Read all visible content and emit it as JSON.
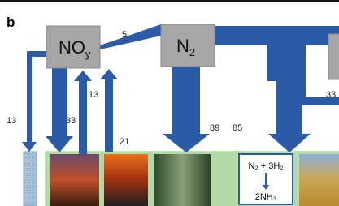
{
  "panel_label": "b",
  "nodes": [
    {
      "label": "NO",
      "subscript": "y"
    },
    {
      "label": "N",
      "subscript": "2"
    }
  ],
  "flows": [
    5,
    13,
    33,
    13,
    21,
    89,
    85,
    33
  ],
  "reaction": {
    "reactants": "N₂ + 3H₂",
    "product": "2NH₃"
  }
}
